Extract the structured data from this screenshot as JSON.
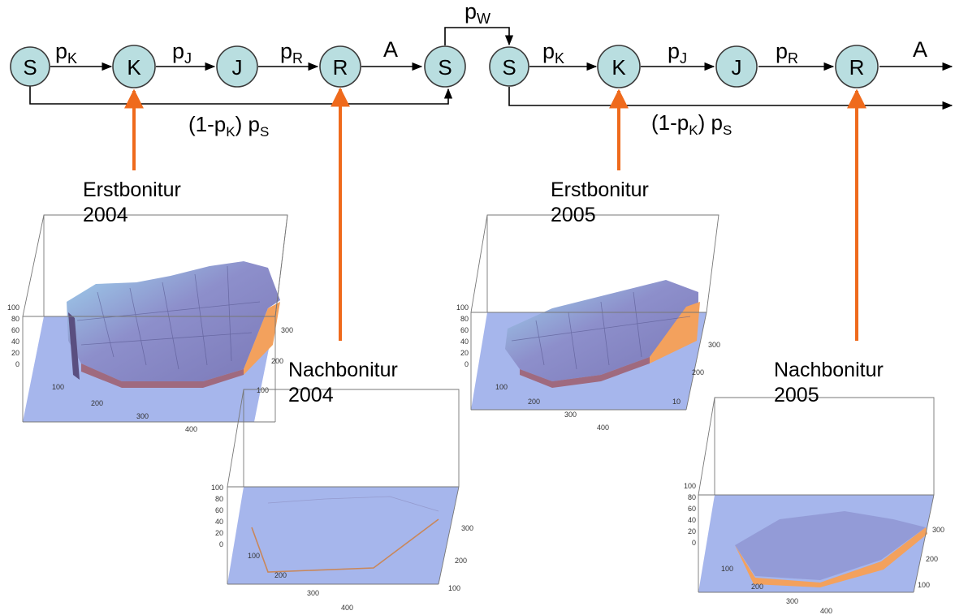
{
  "colors": {
    "node_fill": "#b9dee0",
    "node_stroke": "#3a3a3a",
    "arrow": "#000000",
    "observation_arrow": "#ef6a1c",
    "plot_floor": "#a6b6ec",
    "plot_surface": "#8c8fc8",
    "plot_wall": "#f3a15d"
  },
  "nodes": [
    "S",
    "K",
    "J",
    "R",
    "S",
    "S",
    "K",
    "J",
    "R"
  ],
  "transitions": {
    "p_K": {
      "base": "p",
      "sub": "K"
    },
    "p_J": {
      "base": "p",
      "sub": "J"
    },
    "p_R": {
      "base": "p",
      "sub": "R"
    },
    "p_W": {
      "base": "p",
      "sub": "W"
    },
    "A": "A",
    "skip": {
      "open": "(1-p",
      "k_sub": "K",
      "close": ") p",
      "s_sub": "S"
    }
  },
  "surveys": [
    {
      "title": "Erstbonitur",
      "year": "2004"
    },
    {
      "title": "Nachbonitur",
      "year": "2004"
    },
    {
      "title": "Erstbonitur",
      "year": "2005"
    },
    {
      "title": "Nachbonitur",
      "year": "2005"
    }
  ],
  "plot_axes": {
    "z_ticks": [
      "100",
      "80",
      "60",
      "40",
      "20",
      "0"
    ],
    "x_ticks": [
      "100",
      "200",
      "300",
      "400"
    ],
    "y_ticks": [
      "100",
      "200",
      "300"
    ],
    "y_ticks_2005a": [
      "10",
      "200",
      "300"
    ]
  }
}
